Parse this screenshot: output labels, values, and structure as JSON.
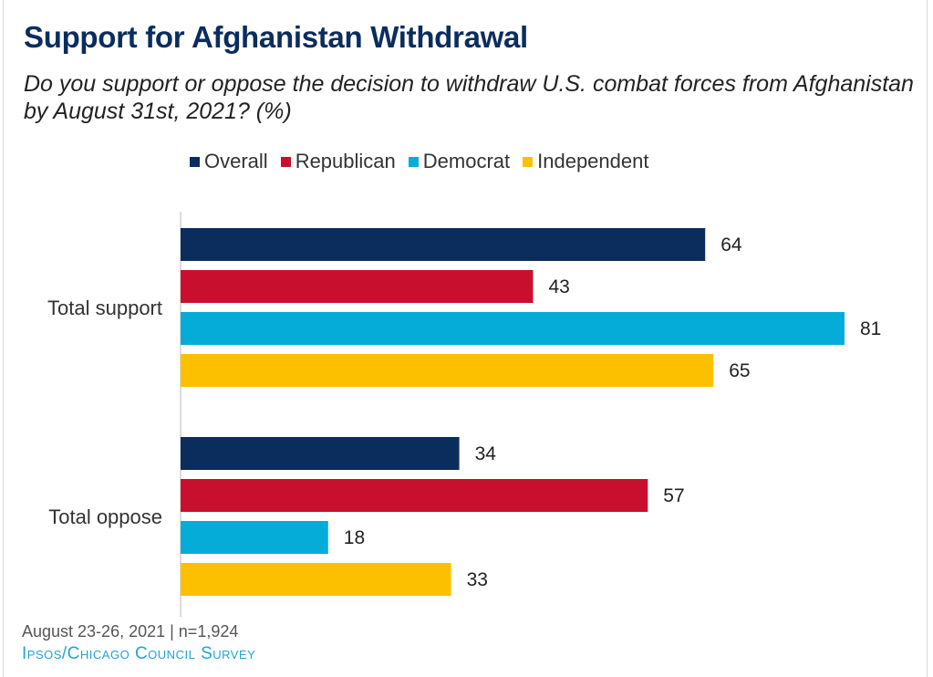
{
  "chart_data": {
    "type": "bar",
    "orientation": "horizontal",
    "title": "Support for Afghanistan Withdrawal",
    "subtitle": "Do you support or oppose the decision to withdraw U.S. combat forces from Afghanistan by August 31st, 2021? (%)",
    "categories": [
      "Total support",
      "Total oppose"
    ],
    "series": [
      {
        "name": "Overall",
        "color": "#0b2d5e",
        "values": [
          64,
          34
        ]
      },
      {
        "name": "Republican",
        "color": "#c8102e",
        "values": [
          43,
          57
        ]
      },
      {
        "name": "Democrat",
        "color": "#05acd8",
        "values": [
          81,
          18
        ]
      },
      {
        "name": "Independent",
        "color": "#fdc000",
        "values": [
          65,
          33
        ]
      }
    ],
    "xlabel": "",
    "ylabel": "",
    "xlim": [
      0,
      81
    ],
    "grid": false,
    "legend_position": "top",
    "data_labels": true
  },
  "footer": {
    "date_sample": "August 23-26, 2021 | n=1,924",
    "source": "Ipsos/Chicago Council Survey"
  }
}
